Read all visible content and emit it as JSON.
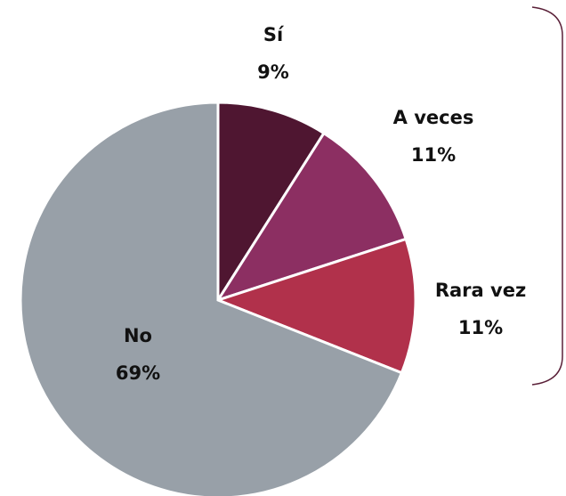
{
  "chart_data": {
    "type": "pie",
    "categories": [
      "Sí",
      "A veces",
      "Rara vez",
      "No"
    ],
    "values": [
      9,
      11,
      11,
      69
    ],
    "value_labels": [
      "9%",
      "11%",
      "11%",
      "69%"
    ],
    "colors": [
      "#4f1631",
      "#8c2f62",
      "#b1314b",
      "#98a0a8"
    ]
  }
}
